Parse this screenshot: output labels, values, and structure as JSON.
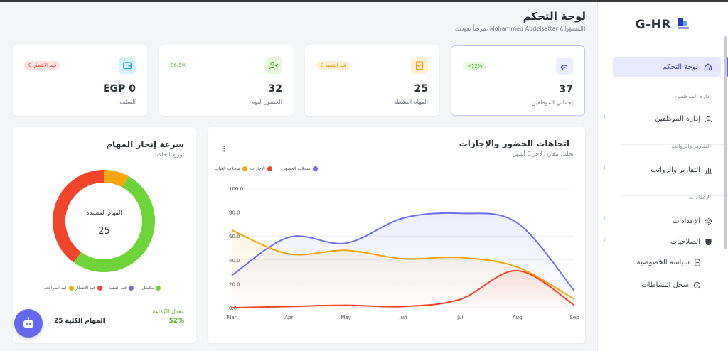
{
  "sidebar": {
    "brand": "G-HR",
    "items": [
      {
        "label": "لوحة التحكم"
      },
      {
        "section": "إدارة الموظفين"
      },
      {
        "label": "إدارة الموظفين"
      },
      {
        "section": "التقارير والرواتب"
      },
      {
        "label": "التقارير والرواتب"
      },
      {
        "section": "الإعدادات"
      },
      {
        "label": "الإعدادات"
      },
      {
        "label": "الصلاحيات"
      },
      {
        "label": "سياسة الخصوصية"
      },
      {
        "label": "سجل النشاطات"
      }
    ]
  },
  "header": {
    "title": "لوحة التحكم",
    "subtitle": "مرحباً بعودتك، Mohammed Abdelsattar (المسؤول)"
  },
  "stats": [
    {
      "value": "37",
      "label": "إجمالي الموظفين",
      "badge": "+12%"
    },
    {
      "value": "25",
      "label": "المهام النشطة",
      "badge": "0 قيد التنفيذ"
    },
    {
      "value": "32",
      "label": "الحضور اليوم",
      "badge": "86.5%"
    },
    {
      "value": "EGP 0",
      "label": "السلف",
      "badge": "0 قيد الانتظار"
    }
  ],
  "colors": {
    "accent": "#5b61e8",
    "green": "#6fd33a",
    "red": "#f0452a",
    "orange": "#f5a70c"
  },
  "donut": {
    "title": "سرعة إنجاز المهام",
    "subtitle": "توزيع الحالات",
    "center_label": "المهام المسندة",
    "center_value": "25",
    "legend": [
      "مكتمل",
      "قيد التنفيذ",
      "قيد الانتظار",
      "قيد المراجعة"
    ],
    "footer_label": "معدل الكفاءة",
    "footer_value": "52%",
    "footer_total": "25 المهام الكلية"
  },
  "line_chart": {
    "title": "اتجاهات الحضور والإجازات",
    "subtitle": "تحليل مقارن لآخر 6 أشهر",
    "legend": [
      "سجلات الحضور",
      "الإجازات",
      "سجلات الغياب"
    ],
    "menu_icon": "kebab-icon"
  },
  "chart_data": [
    {
      "type": "pie",
      "categories": [
        "مكتمل",
        "قيد التنفيذ",
        "قيد الانتظار",
        "قيد المراجعة"
      ],
      "values": [
        13,
        0,
        10,
        2
      ]
    },
    {
      "type": "area",
      "categories": [
        "Mar",
        "Apr",
        "May",
        "Jun",
        "Jul",
        "Aug",
        "Sep"
      ],
      "ylim": [
        0,
        100
      ],
      "yticks": [
        "0.0",
        "20.0",
        "40.0",
        "60.0",
        "80.0",
        "100.0"
      ],
      "series": [
        {
          "name": "سجلات الحضور",
          "values": [
            27,
            59,
            54,
            75,
            79,
            71,
            14
          ],
          "color": "#6b6ff0"
        },
        {
          "name": "الإجازات",
          "values": [
            0,
            1,
            2,
            1,
            7,
            31,
            2
          ],
          "color": "#f0452a"
        },
        {
          "name": "سجلات الغياب",
          "values": [
            65,
            45,
            48,
            41,
            42,
            34,
            7
          ],
          "color": "#f5a70c"
        }
      ]
    }
  ]
}
